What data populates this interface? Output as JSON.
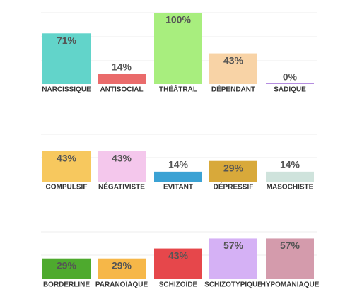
{
  "chart_data": [
    {
      "type": "bar",
      "categories": [
        "NARCISSIQUE",
        "ANTISOCIAL",
        "THÉÂTRAL",
        "DÉPENDANT",
        "SADIQUE"
      ],
      "values": [
        71,
        14,
        100,
        43,
        0
      ],
      "value_labels": [
        "71%",
        "14%",
        "100%",
        "43%",
        "0%"
      ],
      "colors": [
        "#62d4ca",
        "#ea6b6b",
        "#a8ee7e",
        "#f8d3a6",
        "#b58de0"
      ],
      "ylim": [
        0,
        100
      ]
    },
    {
      "type": "bar",
      "categories": [
        "COMPULSIF",
        "NÉGATIVISTE",
        "EVITANT",
        "DÉPRESSIF",
        "MASOCHISTE"
      ],
      "values": [
        43,
        43,
        14,
        29,
        14
      ],
      "value_labels": [
        "43%",
        "43%",
        "14%",
        "29%",
        "14%"
      ],
      "colors": [
        "#f7c85e",
        "#f4c7ec",
        "#3ba2d4",
        "#d8a93a",
        "#cfe3dc"
      ],
      "ylim": [
        0,
        100
      ]
    },
    {
      "type": "bar",
      "categories": [
        "BORDERLINE",
        "PARANOÏAQUE",
        "SCHIZOÏDE",
        "SCHIZOTYPIQUE",
        "HYPOMANIAQUE"
      ],
      "values": [
        29,
        29,
        43,
        57,
        57
      ],
      "value_labels": [
        "29%",
        "29%",
        "43%",
        "57%",
        "57%"
      ],
      "colors": [
        "#4eaa2e",
        "#f6b748",
        "#e6474b",
        "#d5b1f5",
        "#d49bac"
      ],
      "ylim": [
        0,
        100
      ]
    }
  ]
}
